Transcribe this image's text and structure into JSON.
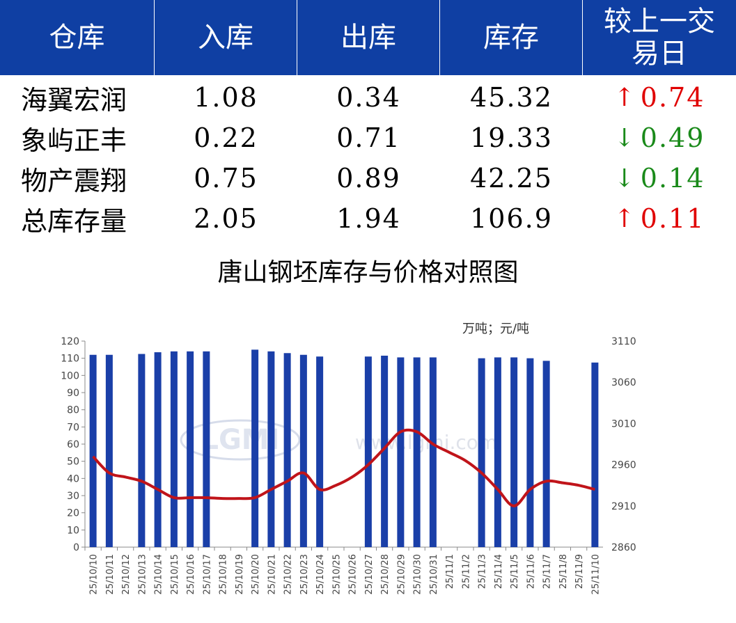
{
  "table": {
    "headers": [
      "仓库",
      "入库",
      "出库",
      "库存",
      "较上一交易日"
    ],
    "rows": [
      {
        "name": "海翼宏润",
        "in": "1.08",
        "out": "0.34",
        "stock": "45.32",
        "dir": "up",
        "change": "0.74"
      },
      {
        "name": "象屿正丰",
        "in": "0.22",
        "out": "0.71",
        "stock": "19.33",
        "dir": "down",
        "change": "0.49"
      },
      {
        "name": "物产震翔",
        "in": "0.75",
        "out": "0.89",
        "stock": "42.25",
        "dir": "down",
        "change": "0.14"
      },
      {
        "name": "总库存量",
        "in": "2.05",
        "out": "1.94",
        "stock": "106.9",
        "dir": "up",
        "change": "0.11"
      }
    ],
    "colors": {
      "header_bg": "#0f3fa3",
      "up": "#e00000",
      "down": "#1a8a1a"
    }
  },
  "chart_data": {
    "type": "bar+line",
    "title": "唐山钢坯库存与价格对照图",
    "unit_label": "万吨；元/吨",
    "watermark": "www.lgmi.com",
    "watermark_logo": "LGMI",
    "categories": [
      "25/10/10",
      "25/10/11",
      "25/10/12",
      "25/10/13",
      "25/10/14",
      "25/10/15",
      "25/10/16",
      "25/10/17",
      "25/10/18",
      "25/10/19",
      "25/10/20",
      "25/10/21",
      "25/10/22",
      "25/10/23",
      "25/10/24",
      "25/10/25",
      "25/10/26",
      "25/10/27",
      "25/10/28",
      "25/10/29",
      "25/10/30",
      "25/10/31",
      "25/11/1",
      "25/11/2",
      "25/11/3",
      "25/11/4",
      "25/11/5",
      "25/11/6",
      "25/11/7",
      "25/11/8",
      "25/11/9",
      "25/11/10"
    ],
    "series": [
      {
        "kind": "bar",
        "axis": "left",
        "color": "#1a3fa8",
        "values": [
          112,
          112,
          null,
          112.5,
          113.5,
          114,
          114,
          114,
          null,
          null,
          115,
          114,
          113,
          112,
          111,
          null,
          null,
          111,
          111.5,
          110.5,
          110.5,
          110.5,
          null,
          null,
          110,
          110.5,
          110.5,
          110,
          108.5,
          null,
          null,
          107.5
        ]
      },
      {
        "kind": "line",
        "axis": "right",
        "color": "#c0141a",
        "values": [
          2970,
          2950,
          2945,
          2940,
          2930,
          2920,
          2920,
          2920,
          2919,
          2919,
          2920,
          2930,
          2940,
          2950,
          2930,
          2935,
          2945,
          2960,
          2980,
          3000,
          3000,
          2985,
          2975,
          2965,
          2950,
          2930,
          2910,
          2930,
          2940,
          2938,
          2935,
          2930
        ]
      }
    ],
    "y_left": {
      "min": 0,
      "max": 120,
      "step": 10,
      "ticks": [
        "0",
        "10",
        "20",
        "30",
        "40",
        "50",
        "60",
        "70",
        "80",
        "90",
        "100",
        "110",
        "120"
      ]
    },
    "y_right": {
      "min": 2860,
      "max": 3110,
      "step": 50,
      "ticks": [
        "2860",
        "2910",
        "2960",
        "3010",
        "3060",
        "3110"
      ]
    }
  }
}
